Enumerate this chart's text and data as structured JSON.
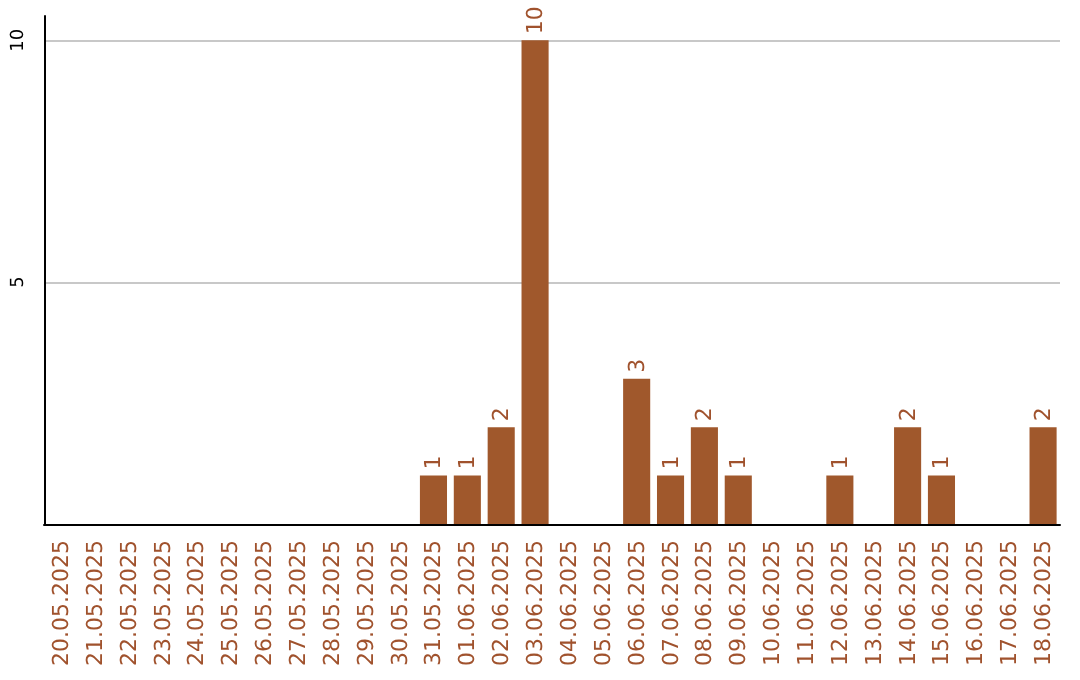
{
  "chart_data": {
    "type": "bar",
    "categories": [
      "20.05.2025",
      "21.05.2025",
      "22.05.2025",
      "23.05.2025",
      "24.05.2025",
      "25.05.2025",
      "26.05.2025",
      "27.05.2025",
      "28.05.2025",
      "29.05.2025",
      "30.05.2025",
      "31.05.2025",
      "01.06.2025",
      "02.06.2025",
      "03.06.2025",
      "04.06.2025",
      "05.06.2025",
      "06.06.2025",
      "07.06.2025",
      "08.06.2025",
      "09.06.2025",
      "10.06.2025",
      "11.06.2025",
      "12.06.2025",
      "13.06.2025",
      "14.06.2025",
      "15.06.2025",
      "16.06.2025",
      "17.06.2025",
      "18.06.2025"
    ],
    "values": [
      0,
      0,
      0,
      0,
      0,
      0,
      0,
      0,
      0,
      0,
      0,
      1,
      1,
      2,
      10,
      0,
      0,
      3,
      1,
      2,
      1,
      0,
      0,
      1,
      0,
      2,
      1,
      0,
      0,
      2
    ],
    "value_labels": [
      null,
      null,
      null,
      null,
      null,
      null,
      null,
      null,
      null,
      null,
      null,
      "1",
      "1",
      "2",
      "10",
      null,
      null,
      "3",
      "1",
      "2",
      "1",
      null,
      null,
      "1",
      null,
      "2",
      "1",
      null,
      null,
      "2"
    ],
    "color": "#a0582c",
    "ylim": [
      0,
      10.5
    ],
    "yticks": [
      {
        "value": 0,
        "label": null
      },
      5,
      10
    ],
    "grid": "y"
  }
}
